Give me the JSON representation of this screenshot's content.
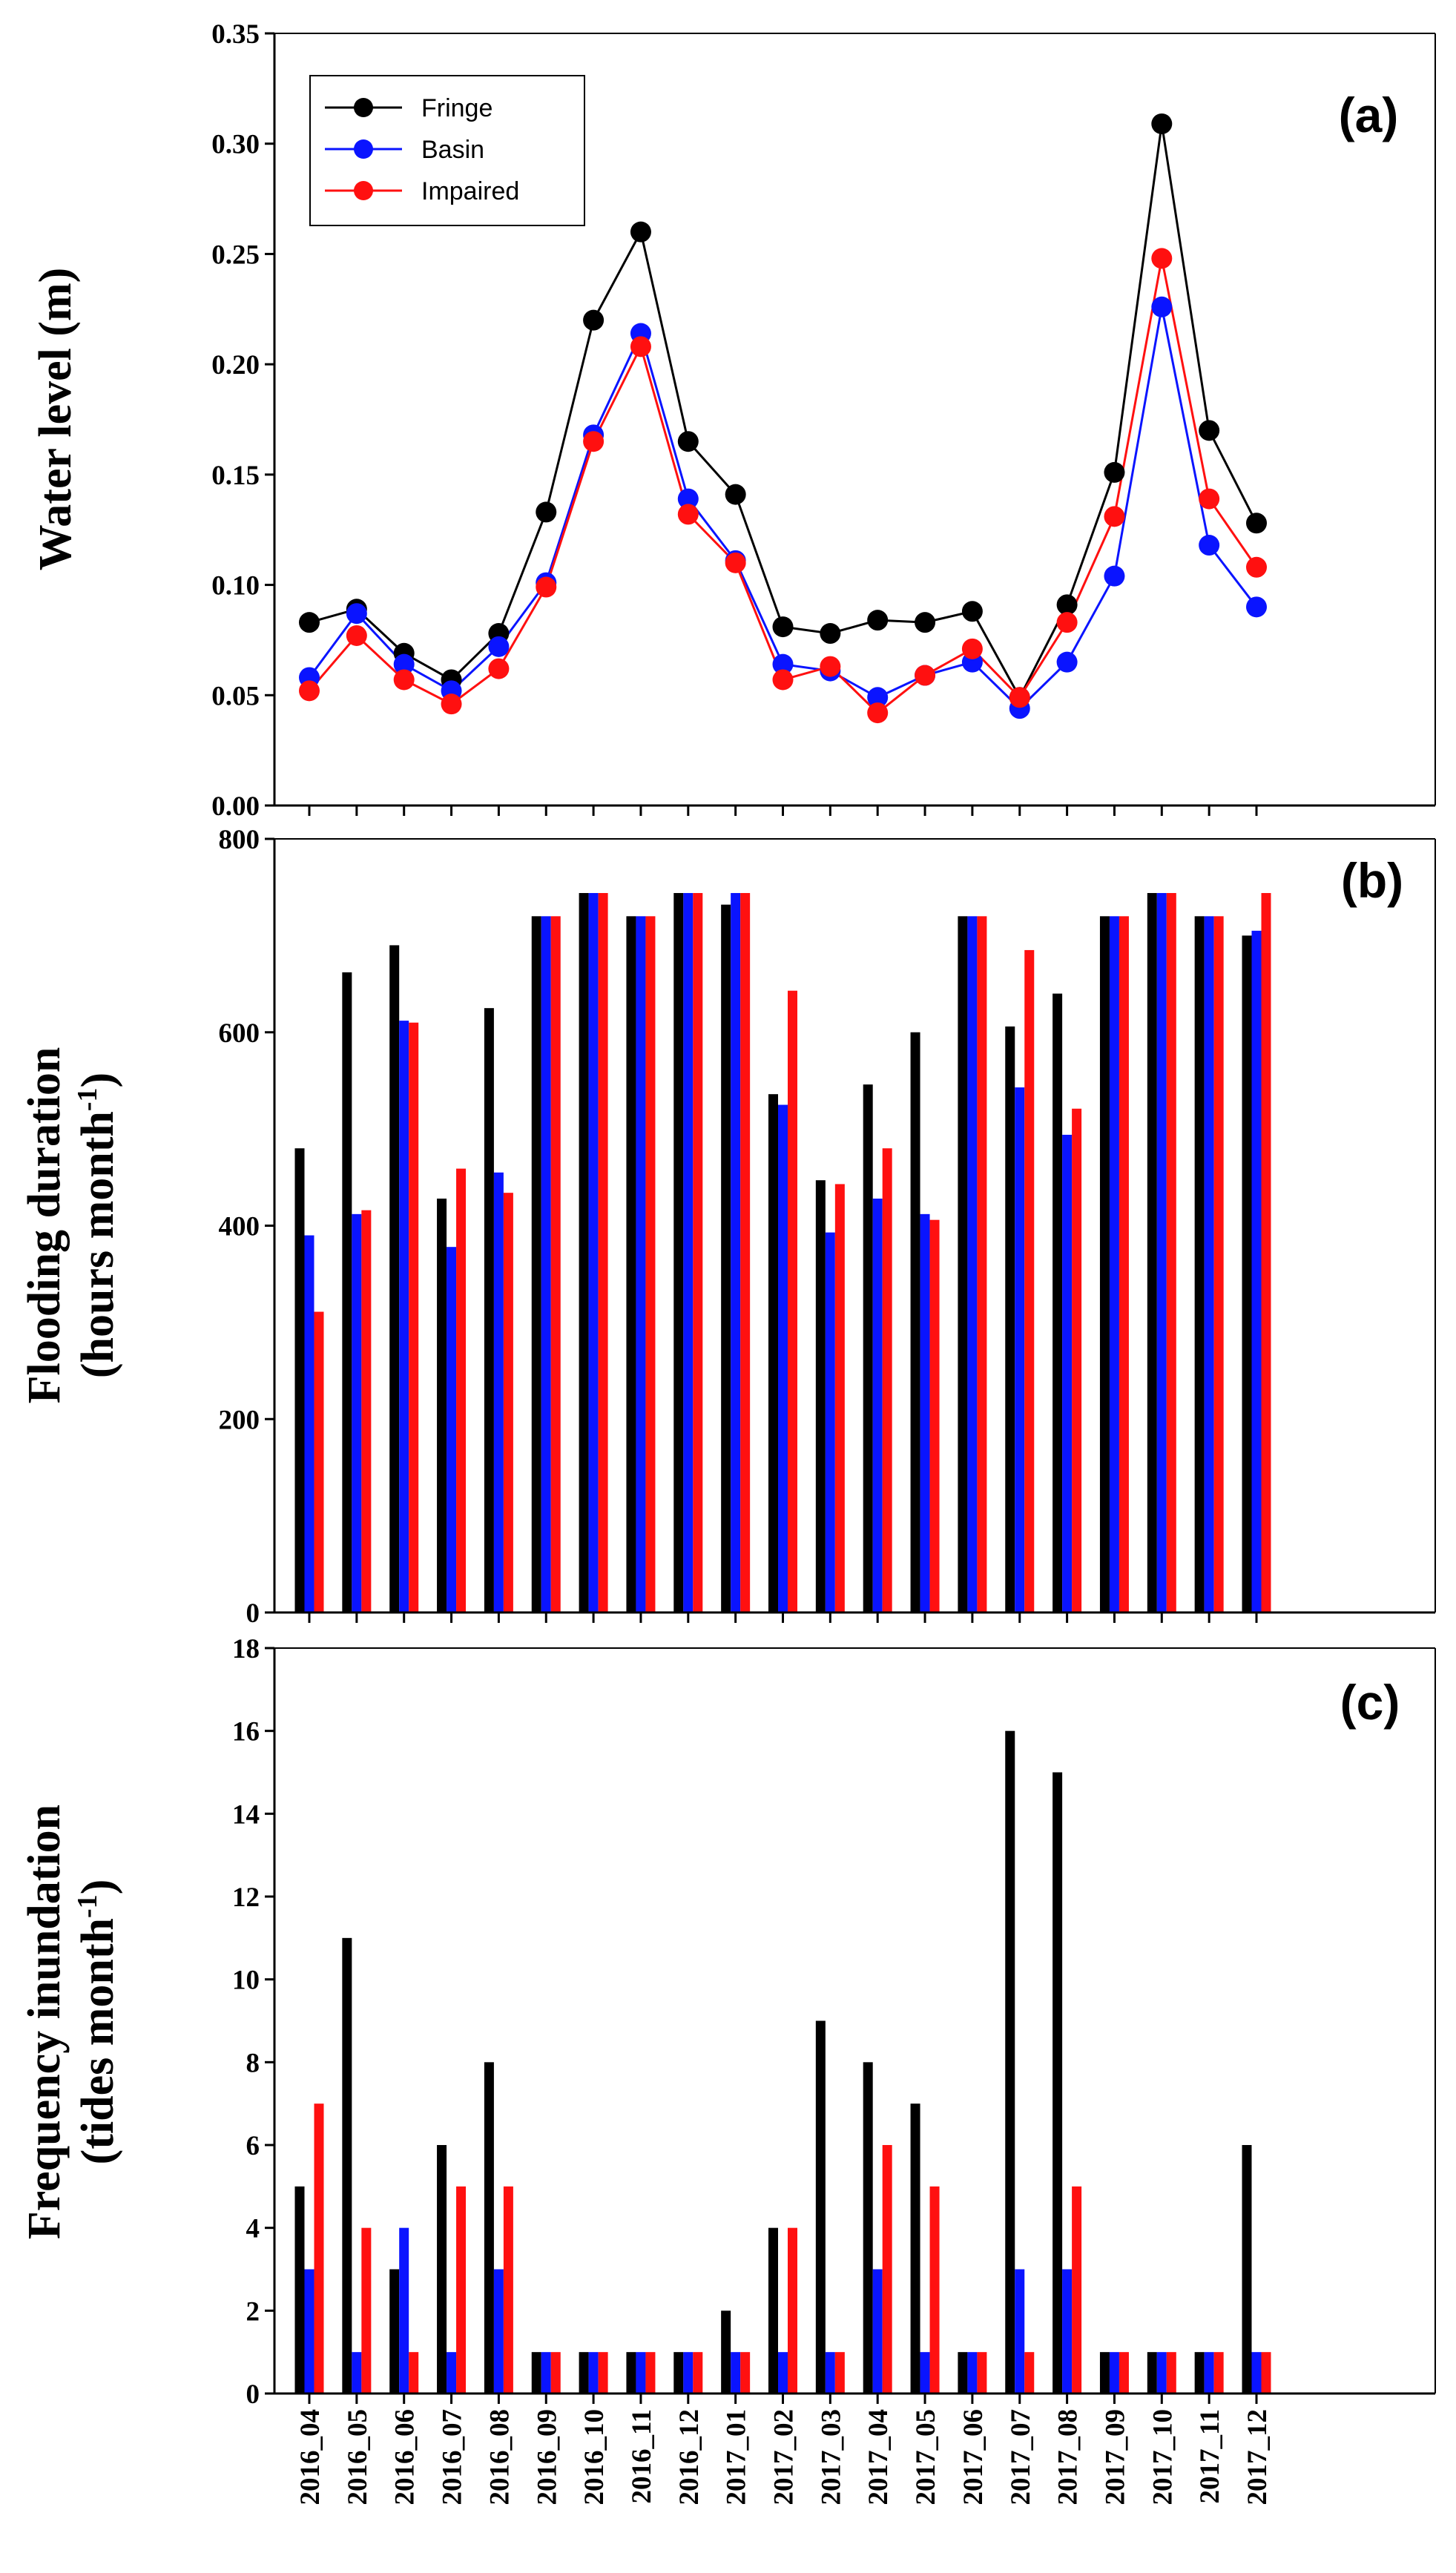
{
  "categories": [
    "2016_04",
    "2016_05",
    "2016_06",
    "2016_07",
    "2016_08",
    "2016_09",
    "2016_10",
    "2016_11",
    "2016_12",
    "2017_01",
    "2017_02",
    "2017_03",
    "2017_04",
    "2017_05",
    "2017_06",
    "2017_07",
    "2017_08",
    "2017_09",
    "2017_10",
    "2017_11",
    "2017_12"
  ],
  "colors": {
    "Fringe": "#000000",
    "Basin": "#0a14ff",
    "Impaired": "#ff1010"
  },
  "chart_data": [
    {
      "type": "line",
      "panel_label": "(a)",
      "ylabel": "Water level (m)",
      "ylim": [
        0,
        0.35
      ],
      "yticks": [
        0,
        0.05,
        0.1,
        0.15,
        0.2,
        0.25,
        0.3,
        0.35
      ],
      "ytick_labels": [
        "0.00",
        "0.05",
        "0.10",
        "0.15",
        "0.20",
        "0.25",
        "0.30",
        "0.35"
      ],
      "legend": [
        "Fringe",
        "Basin",
        "Impaired"
      ],
      "legend_position": "top-left",
      "series": [
        {
          "name": "Fringe",
          "values": [
            0.083,
            0.089,
            0.069,
            0.057,
            0.078,
            0.133,
            0.22,
            0.26,
            0.165,
            0.141,
            0.081,
            0.078,
            0.084,
            0.083,
            0.088,
            0.049,
            0.091,
            0.151,
            0.309,
            0.17,
            0.128
          ]
        },
        {
          "name": "Basin",
          "values": [
            0.058,
            0.087,
            0.064,
            0.052,
            0.072,
            0.101,
            0.168,
            0.214,
            0.139,
            0.111,
            0.064,
            0.061,
            0.049,
            0.059,
            0.065,
            0.044,
            0.065,
            0.104,
            0.226,
            0.118,
            0.09
          ]
        },
        {
          "name": "Impaired",
          "values": [
            0.052,
            0.077,
            0.057,
            0.046,
            0.062,
            0.099,
            0.165,
            0.208,
            0.132,
            0.11,
            0.057,
            0.063,
            0.042,
            0.059,
            0.071,
            0.049,
            0.083,
            0.131,
            0.248,
            0.139,
            0.108
          ]
        }
      ]
    },
    {
      "type": "bar",
      "panel_label": "(b)",
      "ylabel_line1": "Flooding duration",
      "ylabel_line2": "(hours month",
      "ylabel_sup": "-1",
      "ylabel_close": ")",
      "ylim": [
        0,
        800
      ],
      "yticks": [
        0,
        200,
        400,
        600,
        800
      ],
      "ytick_labels": [
        "0",
        "200",
        "400",
        "600",
        "800"
      ],
      "series": [
        {
          "name": "Fringe",
          "values": [
            480,
            662,
            690,
            428,
            625,
            720,
            744,
            720,
            744,
            732,
            536,
            447,
            546,
            600,
            720,
            606,
            640,
            720,
            744,
            720,
            700
          ]
        },
        {
          "name": "Basin",
          "values": [
            390,
            412,
            612,
            378,
            455,
            720,
            744,
            720,
            744,
            744,
            525,
            393,
            428,
            412,
            720,
            543,
            494,
            720,
            744,
            720,
            705
          ]
        },
        {
          "name": "Impaired",
          "values": [
            311,
            416,
            610,
            459,
            434,
            720,
            744,
            720,
            744,
            744,
            643,
            443,
            480,
            406,
            720,
            685,
            521,
            720,
            744,
            720,
            744
          ]
        }
      ]
    },
    {
      "type": "bar",
      "panel_label": "(c)",
      "ylabel_line1": "Frequency inundation",
      "ylabel_line2": "(tides month",
      "ylabel_sup": "-1",
      "ylabel_close": ")",
      "ylim": [
        0,
        18
      ],
      "yticks": [
        0,
        2,
        4,
        6,
        8,
        10,
        12,
        14,
        16,
        18
      ],
      "ytick_labels": [
        "0",
        "2",
        "4",
        "6",
        "8",
        "10",
        "12",
        "14",
        "16",
        "18"
      ],
      "series": [
        {
          "name": "Fringe",
          "values": [
            5,
            11,
            3,
            6,
            8,
            1,
            1,
            1,
            1,
            2,
            4,
            9,
            8,
            7,
            1,
            16,
            15,
            1,
            1,
            1,
            6
          ]
        },
        {
          "name": "Basin",
          "values": [
            3,
            1,
            4,
            1,
            3,
            1,
            1,
            1,
            1,
            1,
            1,
            1,
            3,
            1,
            1,
            3,
            3,
            1,
            1,
            1,
            1
          ]
        },
        {
          "name": "Impaired",
          "values": [
            7,
            4,
            1,
            5,
            5,
            1,
            1,
            1,
            1,
            1,
            4,
            1,
            6,
            5,
            1,
            1,
            5,
            1,
            1,
            1,
            1
          ]
        }
      ]
    }
  ]
}
